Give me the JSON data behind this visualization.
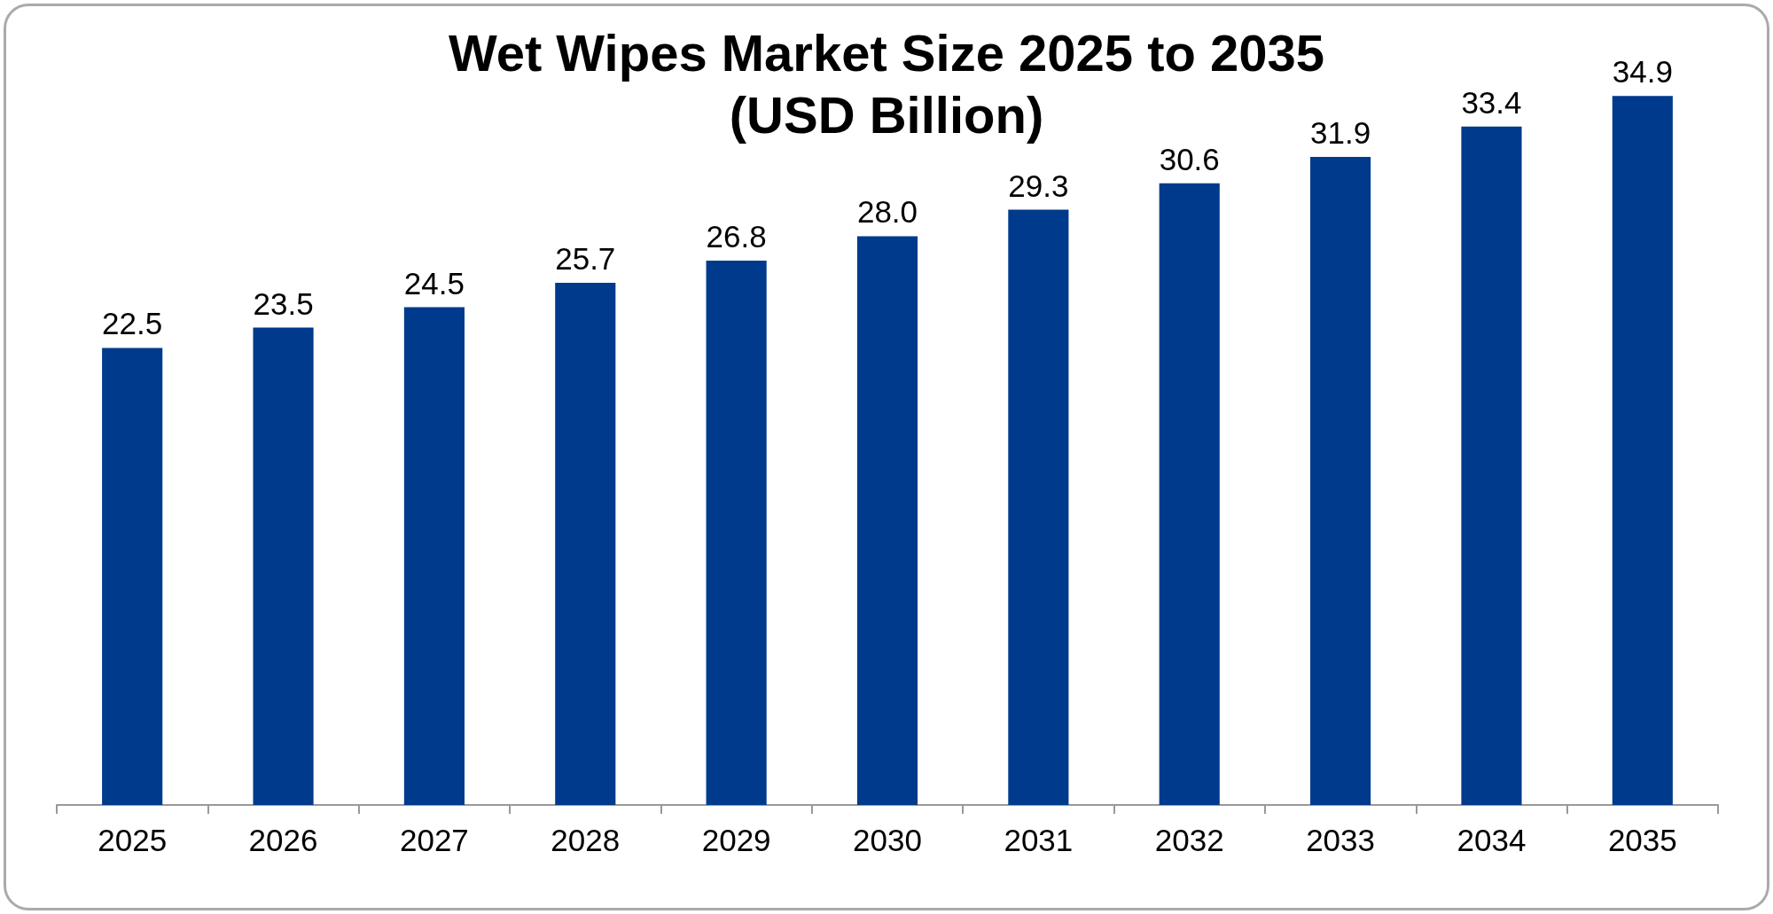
{
  "chart_data": {
    "type": "bar",
    "title": "Wet Wipes Market Size 2025 to 2035\n(USD Billion)",
    "categories": [
      "2025",
      "2026",
      "2027",
      "2028",
      "2029",
      "2030",
      "2031",
      "2032",
      "2033",
      "2034",
      "2035"
    ],
    "values": [
      22.5,
      23.5,
      24.5,
      25.7,
      26.8,
      28.0,
      29.3,
      30.6,
      31.9,
      33.4,
      34.9
    ],
    "value_labels": [
      "22.5",
      "23.5",
      "24.5",
      "25.7",
      "26.8",
      "28.0",
      "29.3",
      "30.6",
      "31.9",
      "33.4",
      "34.9"
    ],
    "color": "#003a8c",
    "tick_labels": "x"
  }
}
